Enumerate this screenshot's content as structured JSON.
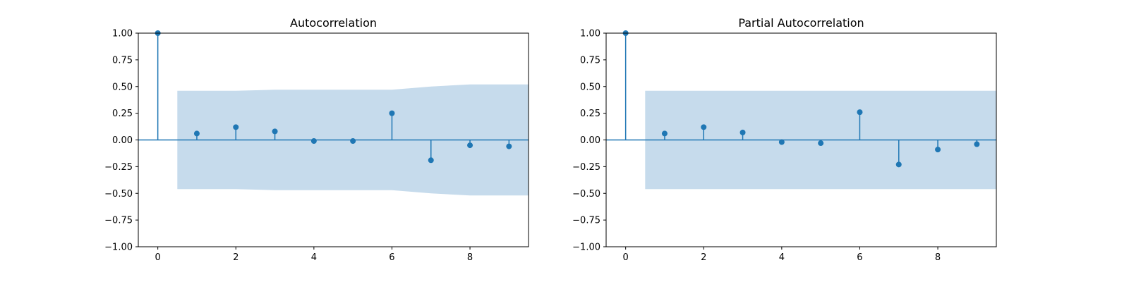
{
  "colors": {
    "stem": "#1f77b4",
    "band": "#c6dbec"
  },
  "chart_data": [
    {
      "type": "stem",
      "title": "Autocorrelation",
      "xlim": [
        -0.5,
        9.5
      ],
      "ylim": [
        -1.0,
        1.0
      ],
      "x_ticks": [
        0,
        2,
        4,
        6,
        8
      ],
      "y_ticks": [
        -1.0,
        -0.75,
        -0.5,
        -0.25,
        0.0,
        0.25,
        0.5,
        0.75,
        1.0
      ],
      "x_tick_labels": [
        "0",
        "2",
        "4",
        "6",
        "8"
      ],
      "y_tick_labels": [
        "−1.00",
        "−0.75",
        "−0.50",
        "−0.25",
        "0.00",
        "0.25",
        "0.50",
        "0.75",
        "1.00"
      ],
      "x": [
        0,
        1,
        2,
        3,
        4,
        5,
        6,
        7,
        8,
        9
      ],
      "values": [
        1.0,
        0.06,
        0.12,
        0.08,
        -0.01,
        -0.01,
        0.25,
        -0.19,
        -0.05,
        -0.06
      ],
      "confint": {
        "x": [
          0.5,
          1,
          2,
          3,
          4,
          5,
          6,
          7,
          8,
          9,
          9.5
        ],
        "upper": [
          0.46,
          0.46,
          0.46,
          0.47,
          0.47,
          0.47,
          0.47,
          0.5,
          0.52,
          0.52,
          0.52
        ],
        "lower": [
          -0.46,
          -0.46,
          -0.46,
          -0.47,
          -0.47,
          -0.47,
          -0.47,
          -0.5,
          -0.52,
          -0.52,
          -0.52
        ]
      }
    },
    {
      "type": "stem",
      "title": "Partial Autocorrelation",
      "xlim": [
        -0.5,
        9.5
      ],
      "ylim": [
        -1.0,
        1.0
      ],
      "x_ticks": [
        0,
        2,
        4,
        6,
        8
      ],
      "y_ticks": [
        -1.0,
        -0.75,
        -0.5,
        -0.25,
        0.0,
        0.25,
        0.5,
        0.75,
        1.0
      ],
      "x_tick_labels": [
        "0",
        "2",
        "4",
        "6",
        "8"
      ],
      "y_tick_labels": [
        "−1.00",
        "−0.75",
        "−0.50",
        "−0.25",
        "0.00",
        "0.25",
        "0.50",
        "0.75",
        "1.00"
      ],
      "x": [
        0,
        1,
        2,
        3,
        4,
        5,
        6,
        7,
        8,
        9
      ],
      "values": [
        1.0,
        0.06,
        0.12,
        0.07,
        -0.02,
        -0.03,
        0.26,
        -0.23,
        -0.09,
        -0.04
      ],
      "confint": {
        "x": [
          0.5,
          9.5
        ],
        "upper": [
          0.46,
          0.46
        ],
        "lower": [
          -0.46,
          -0.46
        ]
      }
    }
  ]
}
